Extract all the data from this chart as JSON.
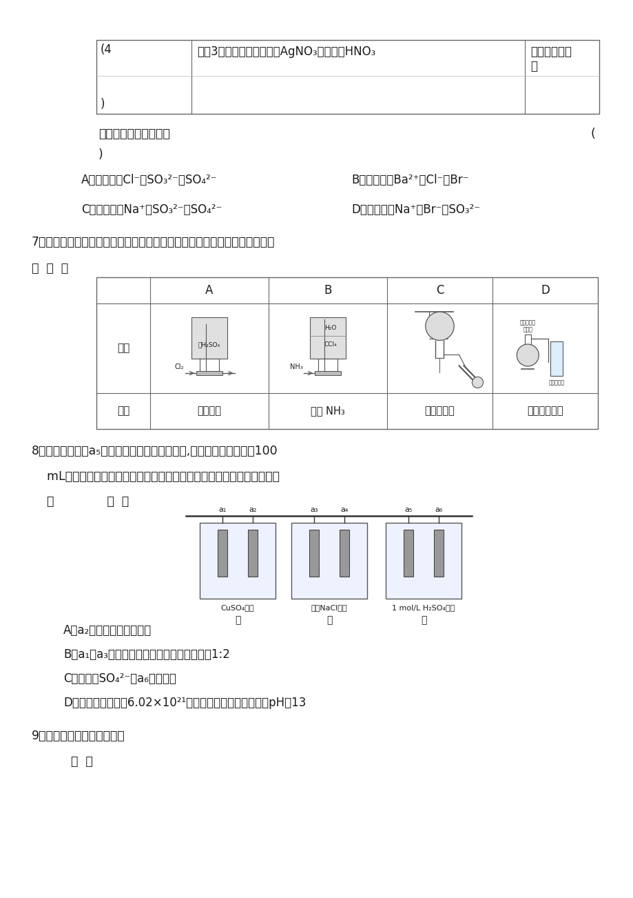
{
  "bg_color": "#ffffff",
  "page_width": 9.2,
  "page_height": 13.02,
  "dpi": 100,
  "text_color": "#1a1a1a",
  "table_border_color": "#555555",
  "q6_footer": "以下结论正确的选项是",
  "q6_A": "A．可能含有Cl⁻、SO₃²⁻、SO₄²⁻",
  "q6_B": "B．肯定没有Ba²⁺、Cl⁻、Br⁻",
  "q6_C": "C．不能确定Na⁺、SO₃²⁻、SO₄²⁻",
  "q6_D": "D．肯定有含Na⁺、Br⁻、SO₃²⁻",
  "q7_text1": "7．用以下实验装置完成对应的实验（局部仪器已省略），能到达实验目的的",
  "q7_text2": "是  （  ）",
  "q7_headers": [
    "A",
    "B",
    "C",
    "D"
  ],
  "q7_row_labels": [
    "装置",
    "实验"
  ],
  "q7_experiments": [
    "干燥氯气",
    "吸收 NH₃",
    "石油的分馏",
    "制取乙酸乙酩"
  ],
  "q8_text1": "8．以下装置中，a₅是铁电极，其余为石墨电极,烧杯中液体体积均为100",
  "q8_text2": "    mL，放置一段时间后，有关表达不正确的选项是（不考虑溶液体积变化",
  "q8_text3": "    ）              （  ）",
  "q8_beakers": [
    "CuSO₄溶液",
    "饱和NaCl溶液",
    "1 mol/L H₂SO₄溶液"
  ],
  "q8_beaker_subs": [
    "甲",
    "乙",
    "丙"
  ],
  "q8_elec_labels": [
    [
      "a₁",
      "a₂"
    ],
    [
      "a₃",
      "a₄"
    ],
    [
      "a₅",
      "a₆"
    ]
  ],
  "q8_A": "A．a₂电极上有亮红色固体",
  "q8_B": "B．a₁、a₃电极上产生的物质，物质的量比是1:2",
  "q8_C": "C．丙中的SO₄²⁻向a₆电极移动",
  "q8_D": "D．当装置电路中有6.02×10²¹个电子通过时，乙中溶液的pH是13",
  "q9_text": "9．以下说法中正确的选项是",
  "q9_paren": "  （  ）",
  "table1_cell1": "(4\n)",
  "table1_cell2": "向（3）的滤液中参加过量AgNO₃溶液和稀HNO₃",
  "table1_cell3": "有白色沉淠产\n生"
}
